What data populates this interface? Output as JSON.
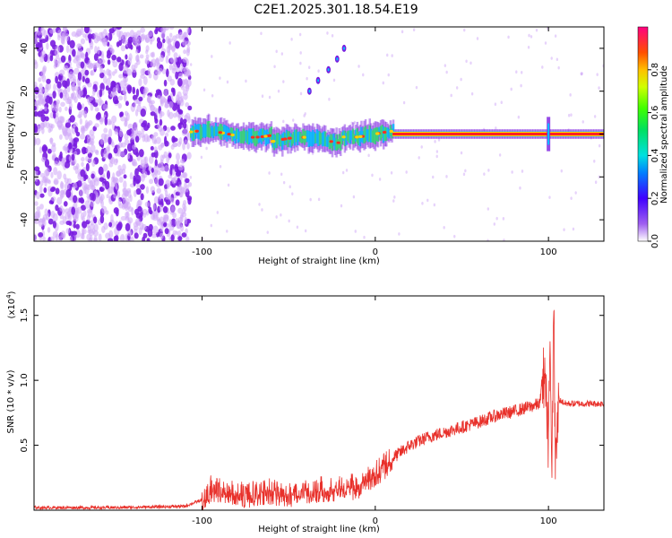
{
  "title": "C2E1.2025.301.18.54.E19",
  "chart_data": [
    {
      "type": "heatmap",
      "name": "spectrogram",
      "xlabel": "Height of straight line (km)",
      "ylabel": "Frequency (Hz)",
      "xlim": [
        -197,
        132
      ],
      "ylim": [
        -50,
        50
      ],
      "xticks": [
        -100,
        0,
        100
      ],
      "xtick_labels": [
        "-100",
        "0",
        "100"
      ],
      "yticks": [
        -40,
        -20,
        0,
        20,
        40
      ],
      "ytick_labels": [
        "-40",
        "-20",
        "0",
        "20",
        "40"
      ],
      "noise_region_x": [
        -197,
        -107
      ],
      "main_band": {
        "x_start": -107,
        "x_end": 132,
        "freq": 0
      },
      "chirp": {
        "x": [
          -38,
          -33,
          -27,
          -22,
          -18
        ],
        "freq": [
          20,
          25,
          30,
          35,
          40
        ]
      },
      "spike_x": 100,
      "colorbar": {
        "label": "Normalized spectral amplitude",
        "ticks": [
          0.0,
          0.2,
          0.4,
          0.6,
          0.8
        ],
        "tick_labels": [
          "0.0",
          "0.2",
          "0.4",
          "0.6",
          "0.8"
        ],
        "range": [
          0,
          1
        ]
      },
      "colors": {
        "low": "#cfa8f8",
        "noise": "#7a1de0",
        "mid": "#00d0a0",
        "high": "#ff2020"
      }
    },
    {
      "type": "line",
      "name": "snr",
      "xlabel": "Height of straight line (km)",
      "ylabel": "SNR (10 * v/v)",
      "multiplier_label": "(x10",
      "multiplier_exp": "4",
      "multiplier_close": ")",
      "xlim": [
        -197,
        132
      ],
      "ylim": [
        0,
        1.65
      ],
      "xticks": [
        -100,
        0,
        100
      ],
      "xtick_labels": [
        "-100",
        "0",
        "100"
      ],
      "yticks": [
        0.5,
        1.0,
        1.5
      ],
      "ytick_labels": [
        "0.5",
        "1.0",
        "1.5"
      ],
      "color": "#e8302a",
      "x": [
        -197,
        -150,
        -110,
        -100,
        -95,
        -90,
        -80,
        -70,
        -60,
        -50,
        -40,
        -30,
        -20,
        -10,
        -5,
        0,
        10,
        20,
        30,
        40,
        50,
        60,
        70,
        80,
        90,
        95,
        98,
        100,
        101,
        102,
        103,
        104,
        106,
        110,
        120,
        132
      ],
      "y": [
        0.02,
        0.02,
        0.03,
        0.08,
        0.18,
        0.16,
        0.13,
        0.14,
        0.16,
        0.13,
        0.17,
        0.18,
        0.19,
        0.2,
        0.25,
        0.3,
        0.4,
        0.5,
        0.56,
        0.6,
        0.64,
        0.68,
        0.73,
        0.76,
        0.8,
        0.82,
        1.1,
        0.5,
        1.45,
        0.2,
        1.62,
        0.3,
        0.85,
        0.82,
        0.82,
        0.82
      ]
    }
  ]
}
